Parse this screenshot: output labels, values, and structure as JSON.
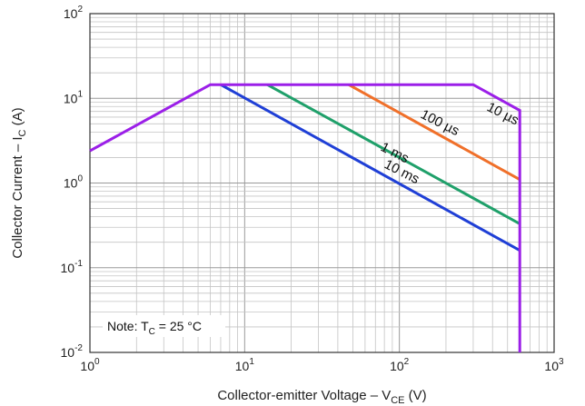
{
  "chart_data": {
    "type": "line",
    "xscale": "log",
    "yscale": "log",
    "xlim": [
      1,
      1000
    ],
    "ylim": [
      0.01,
      100
    ],
    "grid": true,
    "xlabel": {
      "main": "Collector-emitter Voltage – V",
      "sub": "CE",
      "unit": " (V)"
    },
    "ylabel": {
      "main": "Collector Current – I",
      "sub": "C",
      "unit": " (A)"
    },
    "x_ticks": [
      {
        "base": "10",
        "exp": "0"
      },
      {
        "base": "10",
        "exp": "1"
      },
      {
        "base": "10",
        "exp": "2"
      },
      {
        "base": "10",
        "exp": "3"
      }
    ],
    "y_ticks": [
      {
        "base": "10",
        "exp": "-2"
      },
      {
        "base": "10",
        "exp": "-1"
      },
      {
        "base": "10",
        "exp": "0"
      },
      {
        "base": "10",
        "exp": "1"
      },
      {
        "base": "10",
        "exp": "2"
      }
    ],
    "note": {
      "prefix": "Note: T",
      "sub": "C",
      "suffix": " = 25 °C"
    },
    "series": [
      {
        "name": "10 µs",
        "color": "#9b1fe8",
        "points": [
          [
            1,
            2.4
          ],
          [
            6,
            14.5
          ],
          [
            300,
            14.5
          ],
          [
            600,
            7.2
          ],
          [
            600,
            0.01
          ]
        ]
      },
      {
        "name": "100 µs",
        "color": "#f0702a",
        "points": [
          [
            47,
            14.5
          ],
          [
            600,
            1.1
          ]
        ]
      },
      {
        "name": "1 ms",
        "color": "#1fa06a",
        "points": [
          [
            14,
            14.5
          ],
          [
            600,
            0.33
          ]
        ]
      },
      {
        "name": "10 ms",
        "color": "#1f3fd6",
        "points": [
          [
            7,
            14.5
          ],
          [
            600,
            0.16
          ]
        ]
      }
    ],
    "annotations": [
      {
        "text": "10 µs"
      },
      {
        "text": "100 µs"
      },
      {
        "text": "1 ms"
      },
      {
        "text": "10 ms"
      }
    ]
  }
}
